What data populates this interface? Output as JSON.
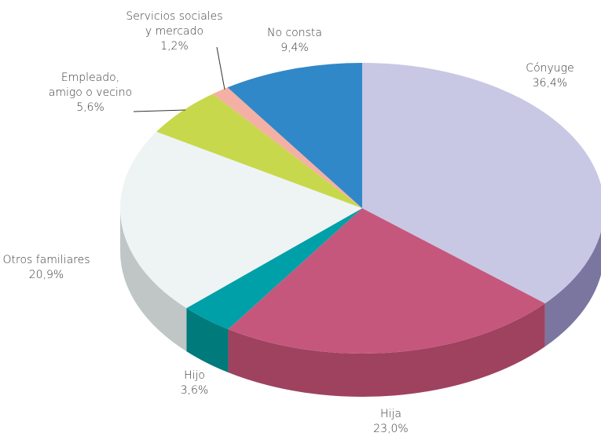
{
  "chart_data": {
    "type": "pie",
    "categories": [
      "Cónyuge",
      "Hija",
      "Hijo",
      "Otros familiares",
      "Empleado, amigo o vecino",
      "Servicios sociales y mercado",
      "No consta"
    ],
    "values": [
      36.4,
      23.0,
      3.6,
      20.9,
      5.6,
      1.2,
      9.4
    ],
    "value_labels": [
      "36,4%",
      "23,0%",
      "3,6%",
      "20,9%",
      "5,6%",
      "1,2%",
      "9,4%"
    ],
    "colors": [
      "#c8c8e4",
      "#c6577c",
      "#00a0a8",
      "#eef4f4",
      "#c8d84c",
      "#f4b0a4",
      "#3088c8"
    ],
    "side_colors": [
      "#7a76a0",
      "#9e4260",
      "#007a7a",
      "#c0c6c6",
      "#9aa838",
      "#c08878",
      "#20689a"
    ]
  }
}
